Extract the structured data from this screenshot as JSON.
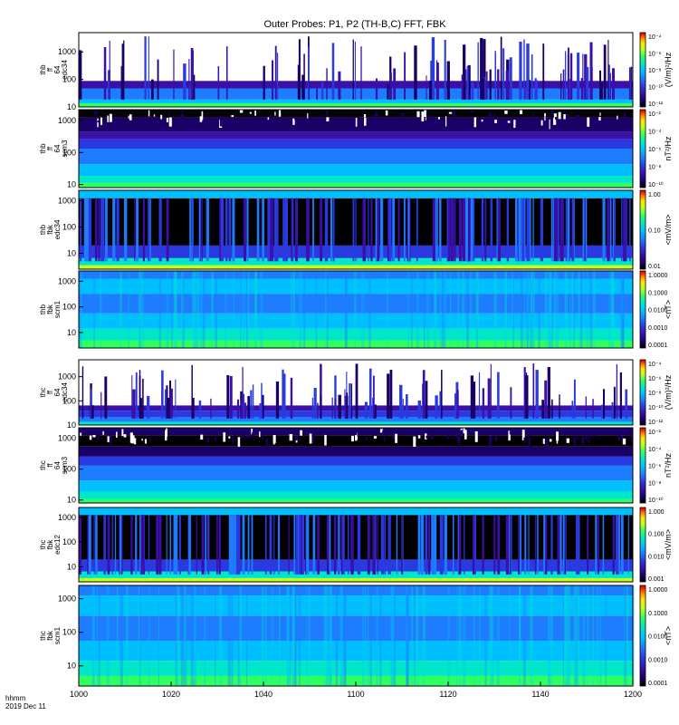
{
  "title": "Outer Probes: P1, P2 (TH-B,C) FFT, FBK",
  "x_axis": {
    "ticks": [
      "1000",
      "1020",
      "1040",
      "1100",
      "1120",
      "1140",
      "1200"
    ],
    "label_line1": "hhmm",
    "label_line2": "2019 Dec 11"
  },
  "chart_data": [
    {
      "type": "heatmap",
      "ylabel": [
        "thb",
        "ff",
        "64",
        "edc34"
      ],
      "yscale": "log",
      "ylim": [
        10,
        5000
      ],
      "yticks": [
        "10",
        "100",
        "1000"
      ],
      "colorbar": {
        "label": "(V/m)²/Hz",
        "ticks": [
          "10⁻¹²",
          "10⁻¹⁰",
          "10⁻⁸",
          "10⁻⁶",
          "10⁻⁴"
        ]
      }
    },
    {
      "type": "heatmap",
      "ylabel": [
        "thb",
        "ff",
        "64",
        "scm3"
      ],
      "yscale": "log",
      "ylim": [
        8,
        2200
      ],
      "yticks": [
        "10",
        "100",
        "1000"
      ],
      "colorbar": {
        "label": "nT²/Hz",
        "ticks": [
          "10⁻¹⁰",
          "10⁻⁸",
          "10⁻⁶",
          "10⁻⁴",
          "10⁻²"
        ]
      }
    },
    {
      "type": "heatmap",
      "ylabel": [
        "thb",
        "fbk",
        "edc34"
      ],
      "yscale": "log",
      "ylim": [
        2.5,
        2500
      ],
      "yticks": [
        "10",
        "100",
        "1000"
      ],
      "colorbar": {
        "label": "<mV/m>",
        "ticks": [
          "0.01",
          "0.10",
          "1.00"
        ]
      }
    },
    {
      "type": "heatmap",
      "ylabel": [
        "thb",
        "fbk",
        "scm1"
      ],
      "yscale": "log",
      "ylim": [
        2.5,
        2500
      ],
      "yticks": [
        "10",
        "100",
        "1000"
      ],
      "colorbar": {
        "label": "<nT>",
        "ticks": [
          "0.0001",
          "0.0010",
          "0.0100",
          "0.1000",
          "1.0000"
        ]
      }
    },
    {
      "type": "heatmap",
      "ylabel": [
        "thc",
        "ff",
        "64",
        "edc34"
      ],
      "yscale": "log",
      "ylim": [
        10,
        5000
      ],
      "yticks": [
        "10",
        "100",
        "1000"
      ],
      "colorbar": {
        "label": "(V/m)²/Hz",
        "ticks": [
          "10⁻¹²",
          "10⁻¹⁰",
          "10⁻⁸",
          "10⁻⁶",
          "10⁻⁴"
        ]
      }
    },
    {
      "type": "heatmap",
      "ylabel": [
        "thc",
        "ff",
        "64",
        "scm3"
      ],
      "yscale": "log",
      "ylim": [
        8,
        2200
      ],
      "yticks": [
        "10",
        "100",
        "1000"
      ],
      "colorbar": {
        "label": "nT²/Hz",
        "ticks": [
          "10⁻¹⁰",
          "10⁻⁸",
          "10⁻⁶",
          "10⁻⁴",
          "10⁻²"
        ]
      }
    },
    {
      "type": "heatmap",
      "ylabel": [
        "thc",
        "fbk",
        "edc12"
      ],
      "yscale": "log",
      "ylim": [
        2.5,
        2500
      ],
      "yticks": [
        "10",
        "100",
        "1000"
      ],
      "colorbar": {
        "label": "<mV/m>",
        "ticks": [
          "0.001",
          "0.010",
          "0.100",
          "1.000"
        ]
      }
    },
    {
      "type": "heatmap",
      "ylabel": [
        "thc",
        "fbk",
        "scm1"
      ],
      "yscale": "log",
      "ylim": [
        2.5,
        2500
      ],
      "yticks": [
        "10",
        "100",
        "1000"
      ],
      "colorbar": {
        "label": "<nT>",
        "ticks": [
          "0.0001",
          "0.0010",
          "0.0100",
          "0.1000",
          "1.0000"
        ]
      }
    }
  ],
  "colors": {
    "scale": [
      "#000000",
      "#1a0066",
      "#3a10a8",
      "#2a3ae0",
      "#1e7cff",
      "#00bfff",
      "#00e6c8",
      "#30ff60",
      "#c8ff1a",
      "#ffe600",
      "#ff8c00",
      "#ff2000",
      "#d00000"
    ]
  }
}
